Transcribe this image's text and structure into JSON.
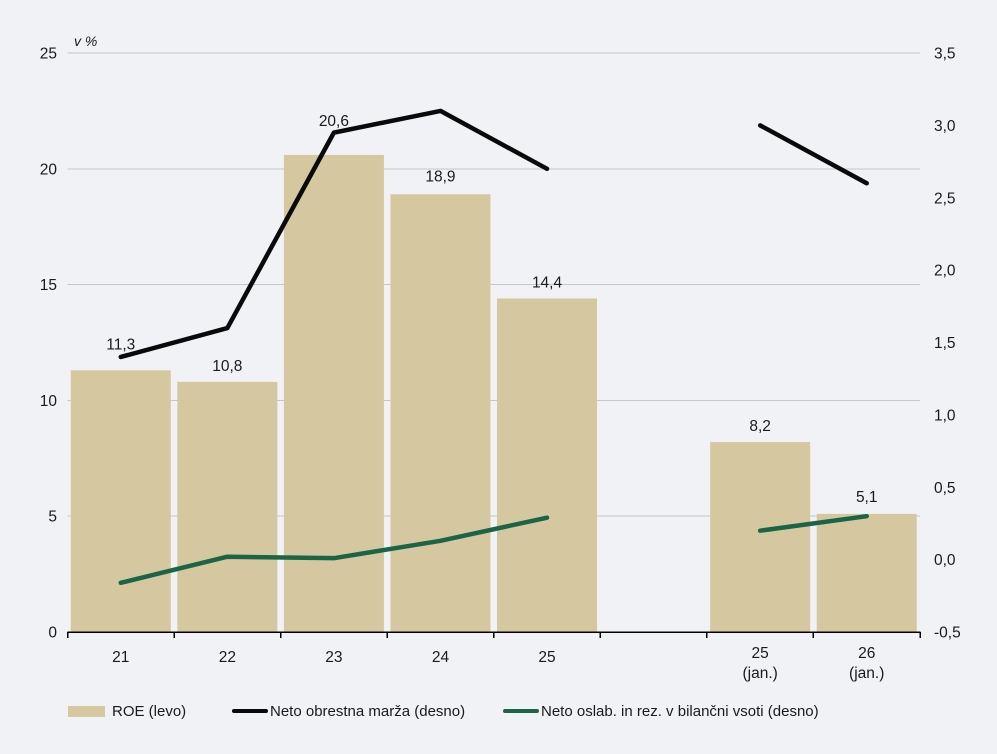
{
  "chart_data": {
    "type": "bar+line (dual axis)",
    "unit_label": "v %",
    "categories": [
      "21",
      "22",
      "23",
      "24",
      "25",
      "",
      "25\n(jan.)",
      "26\n(jan.)"
    ],
    "left_axis": {
      "ticks": [
        "25",
        "20",
        "15",
        "10",
        "5",
        "0"
      ],
      "tick_values": [
        25,
        20,
        15,
        10,
        5,
        0
      ],
      "min": 0,
      "max": 25,
      "grid": true
    },
    "right_axis": {
      "ticks": [
        "3,5",
        "3,0",
        "2,5",
        "2,0",
        "1,5",
        "1,0",
        "0,5",
        "0,0",
        "-0,5"
      ],
      "tick_values": [
        3.5,
        3.0,
        2.5,
        2.0,
        1.5,
        1.0,
        0.5,
        0.0,
        -0.5
      ],
      "min": -0.5,
      "max": 3.5,
      "grid": false
    },
    "series": [
      {
        "name": "ROE (levo)",
        "type": "bar",
        "axis": "left",
        "color": "#d5c7a0",
        "values": [
          11.3,
          10.8,
          20.6,
          18.9,
          14.4,
          null,
          8.2,
          5.1
        ],
        "labels": [
          "11,3",
          "10,8",
          "20,6",
          "18,9",
          "14,4",
          "",
          "8,2",
          "5,1"
        ],
        "label_dy": [
          -26,
          -16,
          -34,
          -18,
          -16,
          0,
          -16,
          -17
        ]
      },
      {
        "name": "Neto obrestna marža (desno)",
        "type": "line",
        "axis": "right",
        "color": "#0a0a0a",
        "values": [
          1.4,
          1.6,
          2.95,
          3.1,
          2.7,
          null,
          3.0,
          2.6
        ]
      },
      {
        "name": "Neto oslab. in rez. v bilančni vsoti (desno)",
        "type": "line",
        "axis": "right",
        "color": "#1b6547",
        "values": [
          -0.16,
          0.02,
          0.01,
          0.13,
          0.29,
          null,
          0.2,
          0.3
        ]
      }
    ],
    "legend": [
      {
        "label": "ROE (levo)",
        "swatch": "rect",
        "color": "#d5c7a0"
      },
      {
        "label": "Neto obrestna marža (desno)",
        "swatch": "line",
        "color": "#0a0a0a"
      },
      {
        "label": "Neto oslab. in rez. v bilančni vsoti (desno)",
        "swatch": "line",
        "color": "#1b6547"
      }
    ],
    "legend_position": "bottom",
    "colors": {
      "background": "#f1f2f6",
      "gridline": "#c6c7ca",
      "axis_line": "#000000",
      "text": "#1a1a1a"
    }
  }
}
